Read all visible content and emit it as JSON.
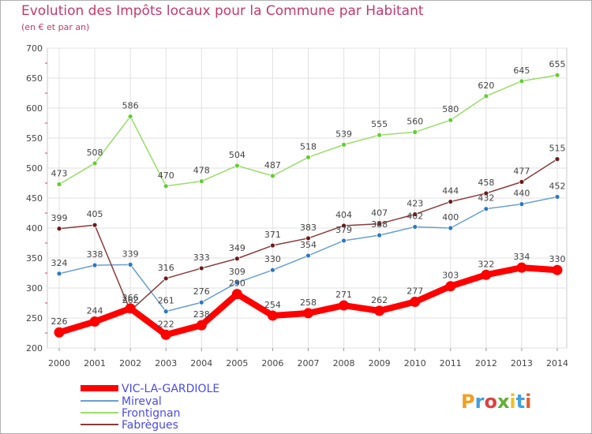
{
  "chart_data": {
    "type": "line",
    "title": "Evolution des Impôts locaux pour la Commune par Habitant",
    "subtitle": "(en € et par an)",
    "xlabel": "",
    "ylabel": "",
    "x": [
      "2000",
      "2001",
      "2002",
      "2003",
      "2004",
      "2005",
      "2006",
      "2007",
      "2008",
      "2009",
      "2010",
      "2011",
      "2012",
      "2013",
      "2014"
    ],
    "ylim": [
      200,
      700
    ],
    "yticks": [
      200,
      250,
      300,
      350,
      400,
      450,
      500,
      550,
      600,
      650,
      700
    ],
    "grid": true,
    "legend_position": "bottom-left",
    "series": [
      {
        "name": "VIC-LA-GARDIOLE",
        "color": "#ff0000",
        "marker": "#ff0000",
        "emphasis": true,
        "values": [
          226,
          244,
          266,
          222,
          238,
          290,
          254,
          258,
          271,
          262,
          277,
          303,
          322,
          334,
          330
        ]
      },
      {
        "name": "Mireval",
        "color": "#6a9fd0",
        "marker": "#2e77c0",
        "emphasis": false,
        "values": [
          324,
          338,
          339,
          261,
          276,
          309,
          330,
          354,
          379,
          388,
          402,
          400,
          432,
          440,
          452
        ]
      },
      {
        "name": "Frontignan",
        "color": "#99dd66",
        "marker": "#66cc33",
        "emphasis": false,
        "values": [
          473,
          508,
          586,
          470,
          478,
          504,
          487,
          518,
          539,
          555,
          560,
          580,
          620,
          645,
          655
        ]
      },
      {
        "name": "Fabrègues",
        "color": "#8b3a3a",
        "marker": "#6b1a1a",
        "emphasis": false,
        "values": [
          399,
          405,
          262,
          316,
          333,
          349,
          371,
          383,
          404,
          407,
          423,
          444,
          458,
          477,
          515
        ]
      }
    ],
    "legend_text_color": "#4a4aee",
    "logo_text": "Proxiti"
  }
}
